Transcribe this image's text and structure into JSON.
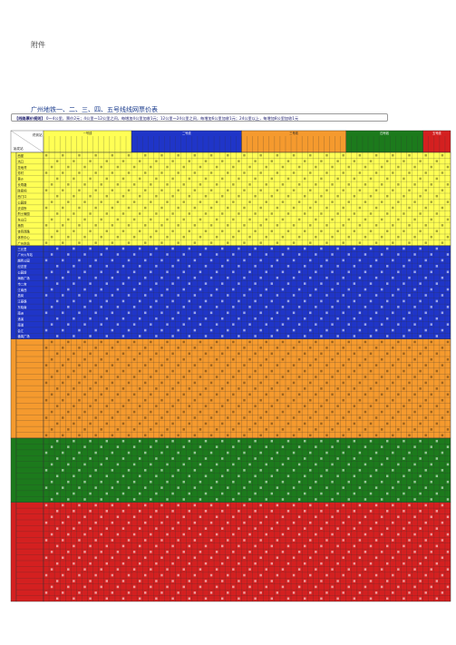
{
  "header": {
    "attachment": "附件",
    "title": "广州地铁一、二、三、四、五号线线网票价表",
    "rule_label": "【线路票价规则】",
    "rule_text": "0～4公里，票价2元；4公里～12公里之间，每增加4公里加收1元；12公里～24公里之间，每增加6公里加收1元；24公里以上，每增加8公里加收1元"
  },
  "table": {
    "corner_top": "终到站",
    "corner_bottom": "始发站",
    "lines": [
      {
        "name": "一号线",
        "color": "#ffff55",
        "rows": 16,
        "cols": 16
      },
      {
        "name": "二号线",
        "color": "#1f35c8",
        "rows": 16,
        "cols": 20
      },
      {
        "name": "三号线",
        "color": "#f59a2e",
        "rows": 17,
        "cols": 19
      },
      {
        "name": "四号线",
        "color": "#1c7a1c",
        "rows": 11,
        "cols": 14
      },
      {
        "name": "五号线",
        "color": "#d42020",
        "rows": 17,
        "cols": 5
      }
    ],
    "line1_stations": [
      "西塱",
      "坑口",
      "花地湾",
      "芳村",
      "黄沙",
      "长寿路",
      "陈家祠",
      "西门口",
      "公园前",
      "农讲所",
      "烈士陵园",
      "东山口",
      "杨箕",
      "体育西路",
      "体育中心",
      "广州东站"
    ],
    "line2_stations": [
      "三元里",
      "广州火车站",
      "越秀公园",
      "纪念堂",
      "公园前",
      "海珠广场",
      "市二宫",
      "江南西",
      "昌岗",
      "江泰路",
      "东晓南",
      "南洲",
      "洛溪",
      "南浦",
      "会江",
      "番禺广场"
    ],
    "fare_sample": "2"
  }
}
